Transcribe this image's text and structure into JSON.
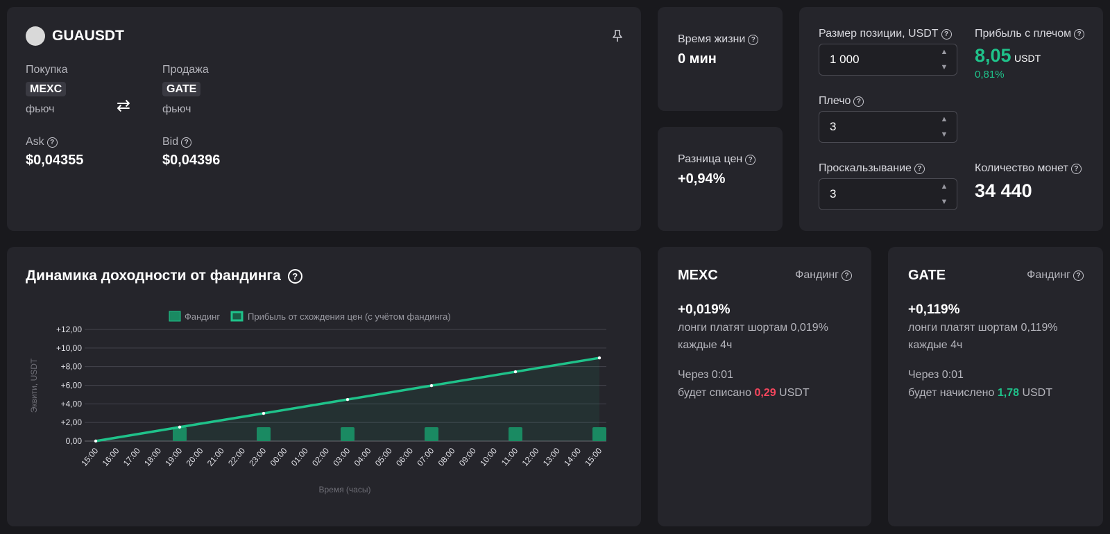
{
  "pair": {
    "symbol": "GUAUSDT",
    "buy_label": "Покупка",
    "sell_label": "Продажа",
    "buy_exchange": "MEXC",
    "sell_exchange": "GATE",
    "buy_type": "фьюч",
    "sell_type": "фьюч",
    "swap_symbol": "⇄",
    "ask_label": "Ask",
    "bid_label": "Bid",
    "ask_value": "$0,04355",
    "bid_value": "$0,04396"
  },
  "lifetime": {
    "label": "Время жизни",
    "value": "0 мин"
  },
  "price_diff": {
    "label": "Разница цен",
    "value": "+0,94%"
  },
  "calc": {
    "position_label": "Размер позиции, USDT",
    "position_value": "1 000",
    "leverage_label": "Плечо",
    "leverage_value": "3",
    "slippage_label": "Проскальзывание",
    "slippage_value": "3",
    "profit_label": "Прибыль с плечом",
    "profit_value": "8,05",
    "profit_unit": "USDT",
    "profit_percent": "0,81%",
    "coins_label": "Количество монет",
    "coins_value": "34 440"
  },
  "chart": {
    "title": "Динамика доходности от фандинга"
  },
  "chart_data": {
    "type": "line",
    "legend": [
      "Фандинг",
      "Прибыль от схождения цен (с учётом фандинга)"
    ],
    "legend_position": "top",
    "xlabel": "Время (часы)",
    "ylabel": "Эквити, USDT",
    "x": [
      "15:00",
      "16:00",
      "17:00",
      "18:00",
      "19:00",
      "20:00",
      "21:00",
      "22:00",
      "23:00",
      "00:00",
      "01:00",
      "02:00",
      "03:00",
      "04:00",
      "05:00",
      "06:00",
      "07:00",
      "08:00",
      "09:00",
      "10:00",
      "11:00",
      "12:00",
      "13:00",
      "14:00",
      "15:00"
    ],
    "y_ticks": [
      "0,00",
      "+2,00",
      "+4,00",
      "+6,00",
      "+8,00",
      "+10,00",
      "+12,00"
    ],
    "ylim": [
      0,
      12
    ],
    "grid": true,
    "series": [
      {
        "name": "Фандинг",
        "type": "bar",
        "x": [
          "19:00",
          "23:00",
          "03:00",
          "07:00",
          "11:00",
          "15:00"
        ],
        "values": [
          1.49,
          1.49,
          1.49,
          1.49,
          1.49,
          1.49
        ]
      },
      {
        "name": "Прибыль от схождения цен (с учётом фандинга)",
        "type": "line",
        "x": [
          "15:00",
          "19:00",
          "23:00",
          "03:00",
          "07:00",
          "11:00",
          "15:00"
        ],
        "values": [
          0,
          1.5,
          2.98,
          4.47,
          5.96,
          7.45,
          8.94
        ]
      }
    ],
    "colors": {
      "line": "#1fc28a",
      "bar": "#1a8a62"
    }
  },
  "mexc": {
    "exchange": "MEXC",
    "funding_label": "Фандинг",
    "rate": "+0,019%",
    "line1": "лонги платят шортам 0,019%",
    "line2": "каждые 4ч",
    "through": "Через 0:01",
    "pre": "будет списано",
    "amount": "0,29",
    "unit": "USDT"
  },
  "gate": {
    "exchange": "GATE",
    "funding_label": "Фандинг",
    "rate": "+0,119%",
    "line1": "лонги платят шортам 0,119%",
    "line2": "каждые 4ч",
    "through": "Через 0:01",
    "pre": "будет начислено",
    "amount": "1,78",
    "unit": "USDT"
  }
}
